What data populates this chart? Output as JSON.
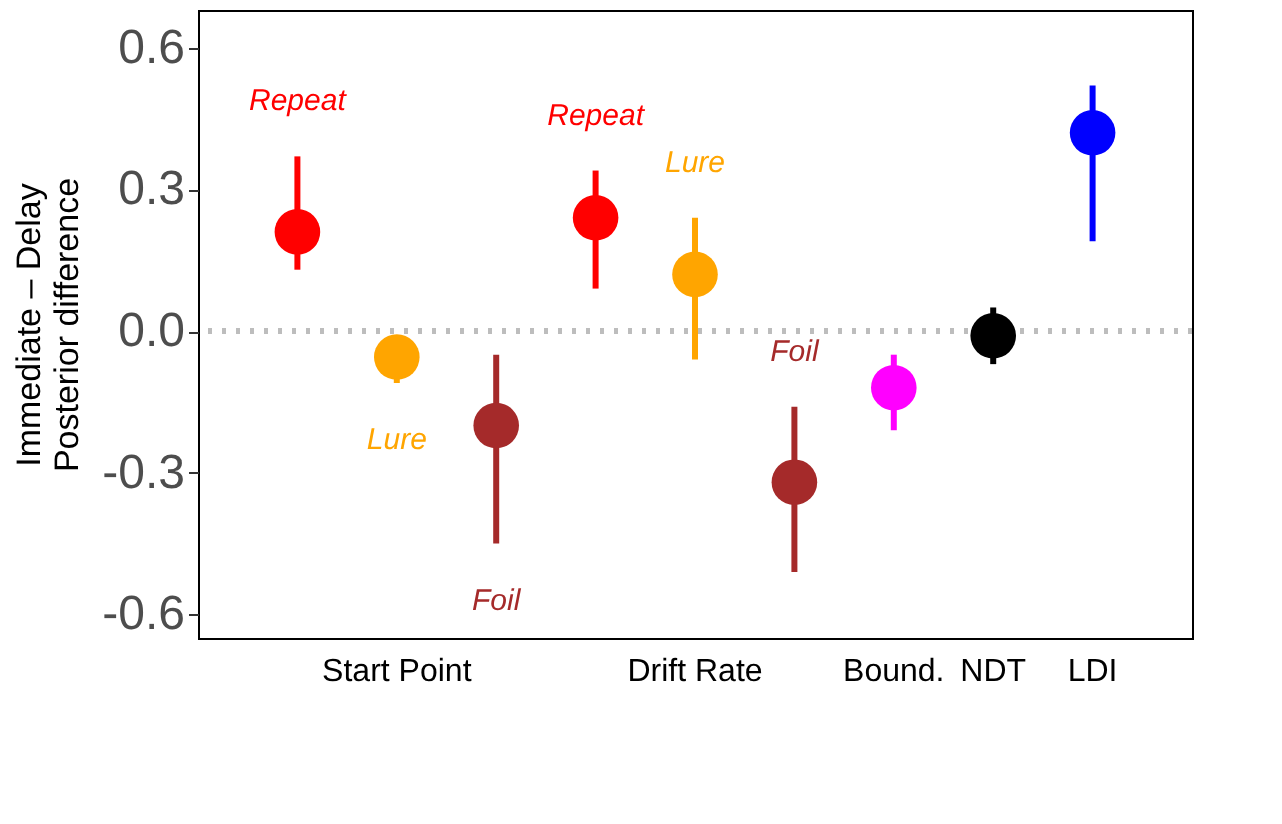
{
  "chart_data": {
    "type": "scatter",
    "ylabel": "Immediate – Delay\nPosterior difference",
    "categories": [
      null,
      "Start Point",
      null,
      null,
      "Drift Rate",
      null,
      "Bound.",
      "NDT",
      "LDI"
    ],
    "series": [
      {
        "name": "Repeat",
        "color": "#ff0000",
        "values": [
          0.21,
          null,
          null,
          0.24,
          null,
          null,
          null,
          null,
          null
        ],
        "errors": [
          [
            0.13,
            0.37
          ],
          null,
          null,
          [
            0.09,
            0.34
          ],
          null,
          null,
          null,
          null,
          null
        ]
      },
      {
        "name": "Lure",
        "color": "#ffa500",
        "values": [
          null,
          -0.055,
          null,
          null,
          0.12,
          null,
          null,
          null,
          null
        ],
        "errors": [
          null,
          [
            -0.11,
            -0.01
          ],
          null,
          null,
          [
            -0.06,
            0.24
          ],
          null,
          null,
          null,
          null
        ]
      },
      {
        "name": "Foil",
        "color": "#a52a2a",
        "values": [
          null,
          null,
          -0.2,
          null,
          null,
          -0.32,
          null,
          null,
          null
        ],
        "errors": [
          null,
          null,
          [
            -0.45,
            -0.05
          ],
          null,
          null,
          [
            -0.51,
            -0.16
          ],
          null,
          null,
          null
        ]
      },
      {
        "color": "#ff00ff",
        "values": [
          null,
          null,
          null,
          null,
          null,
          null,
          -0.12,
          null,
          null
        ],
        "errors": [
          null,
          null,
          null,
          null,
          null,
          null,
          [
            -0.21,
            -0.05
          ],
          null,
          null
        ]
      },
      {
        "color": "#000000",
        "values": [
          null,
          null,
          null,
          null,
          null,
          null,
          null,
          -0.01,
          null
        ],
        "errors": [
          null,
          null,
          null,
          null,
          null,
          null,
          null,
          [
            -0.07,
            0.05
          ],
          null
        ]
      },
      {
        "color": "#0000ff",
        "values": [
          null,
          null,
          null,
          null,
          null,
          null,
          null,
          null,
          0.42
        ],
        "errors": [
          null,
          null,
          null,
          null,
          null,
          null,
          null,
          null,
          [
            0.19,
            0.52
          ]
        ]
      }
    ],
    "ylim": [
      -0.65,
      0.68
    ],
    "yticks": [
      -0.6,
      -0.3,
      {
        "value": 0,
        "label": "0.0"
      },
      0.3,
      0.6
    ],
    "ref_lines": [
      {
        "axis": "y",
        "value": 0,
        "color": "#bdbdbd",
        "line_style": "dotted"
      }
    ],
    "marker": "circle",
    "grid": false,
    "legend": false
  }
}
